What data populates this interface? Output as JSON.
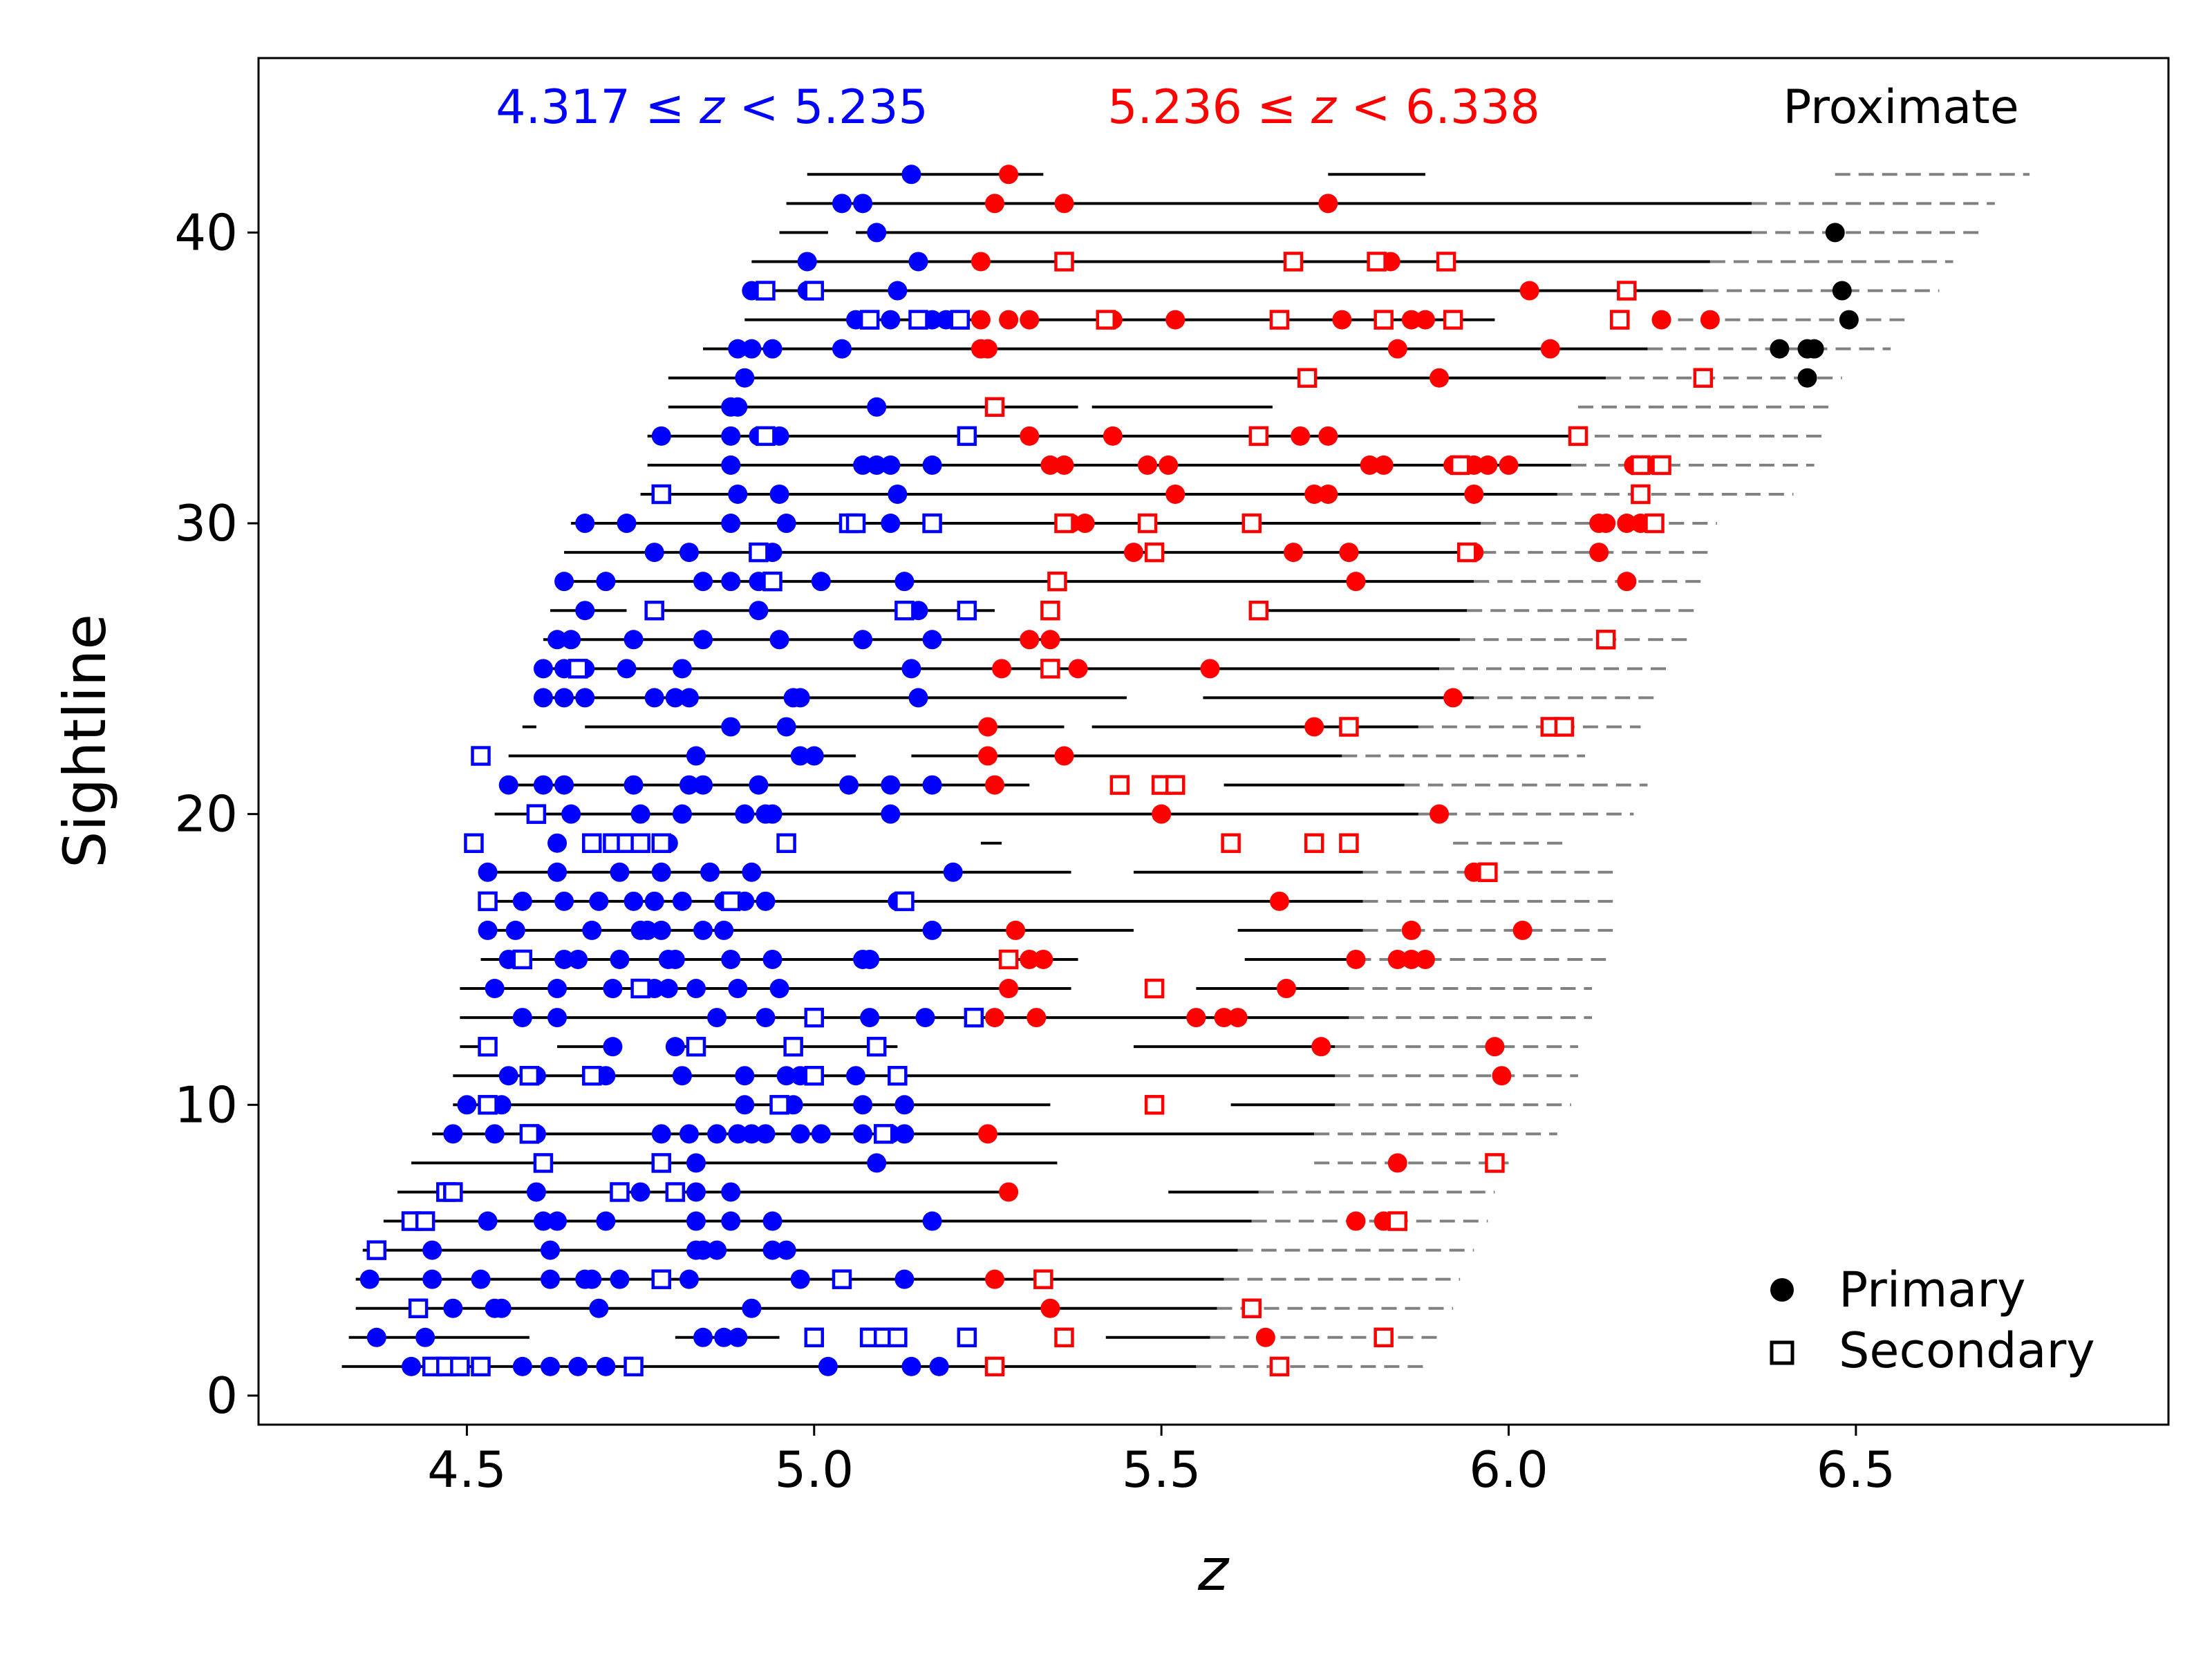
{
  "chart_data": {
    "type": "scatter",
    "xlabel": "z",
    "ylabel": "Sightline",
    "xlim": [
      4.2,
      6.95
    ],
    "ylim": [
      -1,
      46
    ],
    "xticks": [
      4.5,
      5.0,
      5.5,
      6.0,
      6.5
    ],
    "xtick_labels": [
      "4.5",
      "5.0",
      "5.5",
      "6.0",
      "6.5"
    ],
    "yticks": [
      0,
      10,
      20,
      30,
      40
    ],
    "ytick_labels": [
      "0",
      "10",
      "20",
      "30",
      "40"
    ],
    "grid": false,
    "legend_position": "bottom-right",
    "annotations": {
      "low_bin": {
        "lo": "4.317",
        "hi": "5.235",
        "color": "#0000ff"
      },
      "high_bin": {
        "lo": "5.236",
        "hi": "6.338",
        "color": "#ff0000"
      },
      "proximate": "Proximate"
    },
    "legend": [
      {
        "label": "Primary",
        "marker": "circle"
      },
      {
        "label": "Secondary",
        "marker": "square"
      }
    ],
    "colors": {
      "low": "#0000ff",
      "high": "#ff0000",
      "proximate": "#000000",
      "line": "#000000",
      "dashed": "#808080"
    },
    "sightlines": [
      {
        "y": 1,
        "segs": [
          [
            4.32,
            5.55
          ]
        ],
        "dash": [
          5.55,
          5.88
        ],
        "p": [
          4.42,
          4.58,
          4.62,
          4.66,
          4.7,
          5.02,
          5.14,
          5.18
        ],
        "s": [
          4.45,
          4.47,
          4.49,
          4.52,
          4.74,
          5.26,
          5.67
        ]
      },
      {
        "y": 2,
        "segs": [
          [
            4.33,
            4.59
          ],
          [
            4.8,
            4.95
          ],
          [
            5.42,
            5.57
          ]
        ],
        "dash": [
          5.57,
          5.9
        ],
        "p": [
          4.37,
          4.44,
          4.84,
          4.87,
          4.89,
          5.65
        ],
        "s": [
          5.0,
          5.08,
          5.1,
          5.12,
          5.22,
          5.36,
          5.82
        ]
      },
      {
        "y": 3,
        "segs": [
          [
            4.34,
            5.58
          ]
        ],
        "dash": [
          5.58,
          5.92
        ],
        "p": [
          4.48,
          4.54,
          4.55,
          4.69,
          4.91,
          5.34
        ],
        "s": [
          4.43,
          5.63
        ]
      },
      {
        "y": 4,
        "segs": [
          [
            4.34,
            5.59
          ]
        ],
        "dash": [
          5.59,
          5.93
        ],
        "p": [
          4.36,
          4.45,
          4.52,
          4.62,
          4.67,
          4.68,
          4.72,
          4.82,
          4.98,
          5.13,
          5.26
        ],
        "s": [
          4.78,
          5.04,
          5.33
        ]
      },
      {
        "y": 5,
        "segs": [
          [
            4.35,
            5.61
          ]
        ],
        "dash": [
          5.61,
          5.95
        ],
        "p": [
          4.37,
          4.45,
          4.62,
          4.83,
          4.84,
          4.86,
          4.94,
          4.96
        ],
        "s": [
          4.37
        ]
      },
      {
        "y": 6,
        "segs": [
          [
            4.38,
            5.63
          ]
        ],
        "dash": [
          5.63,
          5.97
        ],
        "p": [
          4.44,
          4.53,
          4.61,
          4.63,
          4.7,
          4.83,
          4.88,
          4.94,
          5.17,
          5.78,
          5.82
        ],
        "s": [
          4.42,
          4.44,
          5.84
        ]
      },
      {
        "y": 7,
        "segs": [
          [
            4.4,
            5.28
          ],
          [
            5.51,
            5.64
          ]
        ],
        "dash": [
          5.64,
          5.98
        ],
        "p": [
          4.6,
          4.75,
          4.83,
          4.88,
          5.28
        ],
        "s": [
          4.47,
          4.48,
          4.72,
          4.8
        ]
      },
      {
        "y": 8,
        "segs": [
          [
            4.42,
            5.35
          ]
        ],
        "dash": [
          5.72,
          6.0
        ],
        "p": [
          4.61,
          4.83,
          5.09,
          5.84
        ],
        "s": [
          4.61,
          4.78,
          5.98
        ]
      },
      {
        "y": 9,
        "segs": [
          [
            4.45,
            5.72
          ]
        ],
        "dash": [
          5.72,
          6.07
        ],
        "p": [
          4.48,
          4.54,
          4.6,
          4.78,
          4.82,
          4.86,
          4.89,
          4.91,
          4.93,
          4.98,
          5.01,
          5.07,
          5.11,
          5.13,
          5.25
        ],
        "s": [
          4.59,
          5.1
        ]
      },
      {
        "y": 10,
        "segs": [
          [
            4.48,
            5.34
          ],
          [
            5.6,
            5.75
          ]
        ],
        "dash": [
          5.75,
          6.09
        ],
        "p": [
          4.5,
          4.55,
          4.9,
          4.95,
          4.97,
          5.07,
          5.13
        ],
        "s": [
          4.53,
          4.95,
          5.49
        ]
      },
      {
        "y": 11,
        "segs": [
          [
            4.48,
            5.75
          ]
        ],
        "dash": [
          5.75,
          6.1
        ],
        "p": [
          4.56,
          4.59,
          4.6,
          4.68,
          4.7,
          4.81,
          4.9,
          4.96,
          4.98,
          5.06,
          5.99
        ],
        "s": [
          4.59,
          4.68,
          5.0,
          5.12
        ]
      },
      {
        "y": 12,
        "segs": [
          [
            4.49,
            4.54
          ],
          [
            4.63,
            4.7
          ],
          [
            4.8,
            5.12
          ],
          [
            5.46,
            5.75
          ]
        ],
        "dash": [
          5.75,
          6.1
        ],
        "p": [
          4.71,
          4.8,
          5.73,
          5.98
        ],
        "s": [
          4.53,
          4.83,
          4.97,
          5.09
        ]
      },
      {
        "y": 13,
        "segs": [
          [
            4.49,
            5.77
          ]
        ],
        "dash": [
          5.77,
          6.12
        ],
        "p": [
          4.58,
          4.63,
          4.86,
          4.93,
          5.0,
          5.08,
          5.16,
          5.26,
          5.32,
          5.55,
          5.59,
          5.61
        ],
        "s": [
          5.0,
          5.23
        ]
      },
      {
        "y": 14,
        "segs": [
          [
            4.49,
            5.37
          ],
          [
            5.55,
            5.77
          ]
        ],
        "dash": [
          5.77,
          6.12
        ],
        "p": [
          4.54,
          4.63,
          4.71,
          4.77,
          4.79,
          4.83,
          4.89,
          4.95,
          5.28,
          5.68
        ],
        "s": [
          4.75,
          5.49
        ]
      },
      {
        "y": 15,
        "segs": [
          [
            4.52,
            5.38
          ],
          [
            5.62,
            5.78
          ]
        ],
        "dash": [
          5.78,
          6.14
        ],
        "p": [
          4.56,
          4.58,
          4.64,
          4.66,
          4.72,
          4.79,
          4.8,
          4.88,
          4.94,
          5.07,
          5.08,
          5.31,
          5.33,
          5.78,
          5.84,
          5.86,
          5.88
        ],
        "s": [
          4.58,
          5.28
        ]
      },
      {
        "y": 16,
        "segs": [
          [
            4.52,
            5.46
          ],
          [
            5.61,
            5.79
          ]
        ],
        "dash": [
          5.79,
          6.15
        ],
        "p": [
          4.53,
          4.57,
          4.68,
          4.75,
          4.76,
          4.78,
          4.84,
          4.87,
          5.17,
          5.29,
          5.86,
          6.02
        ],
        "s": []
      },
      {
        "y": 17,
        "segs": [
          [
            4.53,
            5.79
          ]
        ],
        "dash": [
          5.79,
          6.15
        ],
        "p": [
          4.58,
          4.64,
          4.69,
          4.74,
          4.77,
          4.81,
          4.87,
          4.9,
          4.93,
          5.12,
          5.67
        ],
        "s": [
          4.53,
          4.88,
          5.13
        ]
      },
      {
        "y": 18,
        "segs": [
          [
            4.52,
            5.37
          ],
          [
            5.46,
            5.79
          ]
        ],
        "dash": [
          5.79,
          6.15
        ],
        "p": [
          4.53,
          4.63,
          4.72,
          4.78,
          4.85,
          4.91,
          5.2,
          5.95
        ],
        "s": [
          5.97
        ]
      },
      {
        "y": 19,
        "segs": [
          [
            5.24,
            5.27
          ]
        ],
        "dash": [
          5.92,
          6.08
        ],
        "p": [
          4.63,
          4.73,
          4.79
        ],
        "s": [
          4.51,
          4.68,
          4.71,
          4.73,
          4.75,
          4.78,
          4.96,
          5.6,
          5.72,
          5.77
        ]
      },
      {
        "y": 20,
        "segs": [
          [
            4.54,
            5.87
          ]
        ],
        "dash": [
          5.87,
          6.18
        ],
        "p": [
          4.65,
          4.75,
          4.81,
          4.9,
          4.93,
          4.94,
          5.11,
          5.5,
          5.9
        ],
        "s": [
          4.6
        ]
      },
      {
        "y": 21,
        "segs": [
          [
            4.55,
            5.31
          ],
          [
            5.59,
            5.85
          ]
        ],
        "dash": [
          5.85,
          6.2
        ],
        "p": [
          4.56,
          4.61,
          4.64,
          4.74,
          4.82,
          4.84,
          4.92,
          5.05,
          5.11,
          5.17,
          5.26
        ],
        "s": [
          5.44,
          5.5,
          5.52
        ]
      },
      {
        "y": 22,
        "segs": [
          [
            4.56,
            5.06
          ],
          [
            5.14,
            5.76
          ]
        ],
        "dash": [
          5.76,
          6.11
        ],
        "p": [
          4.83,
          4.98,
          5.0,
          5.25,
          5.36
        ],
        "s": [
          4.52
        ]
      },
      {
        "y": 23,
        "segs": [
          [
            4.58,
            4.6
          ],
          [
            4.67,
            5.36
          ],
          [
            5.4,
            5.87
          ]
        ],
        "dash": [
          5.87,
          6.19
        ],
        "p": [
          4.88,
          4.96,
          5.25,
          5.72
        ],
        "s": [
          5.77,
          6.06,
          6.08
        ]
      },
      {
        "y": 24,
        "segs": [
          [
            4.6,
            5.45
          ],
          [
            5.56,
            5.95
          ]
        ],
        "dash": [
          5.95,
          6.22
        ],
        "p": [
          4.61,
          4.64,
          4.67,
          4.77,
          4.8,
          4.82,
          4.97,
          4.98,
          5.15,
          5.92
        ],
        "s": []
      },
      {
        "y": 25,
        "segs": [
          [
            4.6,
            5.9
          ]
        ],
        "dash": [
          5.9,
          6.23
        ],
        "p": [
          4.61,
          4.64,
          4.67,
          4.73,
          4.81,
          5.14,
          5.27,
          5.38,
          5.57
        ],
        "s": [
          4.66,
          5.34
        ]
      },
      {
        "y": 26,
        "segs": [
          [
            4.61,
            5.93
          ]
        ],
        "dash": [
          5.93,
          6.26
        ],
        "p": [
          4.63,
          4.65,
          4.74,
          4.84,
          4.95,
          5.07,
          5.17,
          5.31,
          5.34
        ],
        "s": [
          6.14
        ]
      },
      {
        "y": 27,
        "segs": [
          [
            4.62,
            4.73
          ],
          [
            4.78,
            5.26
          ],
          [
            5.63,
            5.94
          ]
        ],
        "dash": [
          5.94,
          6.27
        ],
        "p": [
          4.67,
          4.92,
          5.15
        ],
        "s": [
          4.77,
          5.13,
          5.22,
          5.34,
          5.64
        ]
      },
      {
        "y": 28,
        "segs": [
          [
            4.63,
            5.95
          ]
        ],
        "dash": [
          5.95,
          6.28
        ],
        "p": [
          4.64,
          4.7,
          4.84,
          4.88,
          4.92,
          5.01,
          5.13,
          5.78,
          6.17
        ],
        "s": [
          4.94,
          5.35
        ]
      },
      {
        "y": 29,
        "segs": [
          [
            4.64,
            5.96
          ]
        ],
        "dash": [
          5.96,
          6.29
        ],
        "p": [
          4.77,
          4.82,
          4.92,
          4.94,
          5.46,
          5.69,
          5.77,
          5.95,
          6.13
        ],
        "s": [
          4.92,
          5.49,
          5.94
        ]
      },
      {
        "y": 30,
        "segs": [
          [
            4.65,
            5.96
          ]
        ],
        "dash": [
          5.96,
          6.3
        ],
        "p": [
          4.67,
          4.73,
          4.88,
          4.96,
          5.11,
          5.37,
          5.39,
          6.13,
          6.14,
          6.17,
          6.19
        ],
        "s": [
          5.05,
          5.06,
          5.17,
          5.36,
          5.48,
          5.63,
          6.21
        ]
      },
      {
        "y": 31,
        "segs": [
          [
            4.75,
            6.07
          ]
        ],
        "dash": [
          6.07,
          6.41
        ],
        "p": [
          4.89,
          4.95,
          5.12,
          5.52,
          5.72,
          5.74,
          5.95
        ],
        "s": [
          4.78,
          6.19
        ]
      },
      {
        "y": 32,
        "segs": [
          [
            4.76,
            6.09
          ]
        ],
        "dash": [
          6.09,
          6.44
        ],
        "p": [
          4.88,
          5.07,
          5.09,
          5.11,
          5.17,
          5.34,
          5.36,
          5.48,
          5.51,
          5.8,
          5.82,
          5.92,
          5.95,
          5.97,
          6.0,
          6.18,
          6.21
        ],
        "s": [
          5.93,
          6.19,
          6.22
        ]
      },
      {
        "y": 33,
        "segs": [
          [
            4.76,
            6.09
          ]
        ],
        "dash": [
          6.09,
          6.46
        ],
        "p": [
          4.78,
          4.88,
          4.92,
          4.95,
          5.31,
          5.43,
          5.7,
          5.74
        ],
        "s": [
          4.93,
          5.22,
          5.64,
          6.1
        ]
      },
      {
        "y": 34,
        "segs": [
          [
            4.79,
            5.38
          ],
          [
            5.4,
            5.66
          ]
        ],
        "dash": [
          6.1,
          6.47
        ],
        "p": [
          4.88,
          4.89,
          5.09
        ],
        "s": [
          5.26
        ]
      },
      {
        "y": 35,
        "segs": [
          [
            4.79,
            6.14
          ]
        ],
        "dash": [
          6.14,
          6.48
        ],
        "p": [
          4.9,
          5.9,
          6.43
        ],
        "s": [
          5.71,
          6.28
        ]
      },
      {
        "y": 36,
        "segs": [
          [
            4.84,
            6.2
          ]
        ],
        "dash": [
          6.2,
          6.55
        ],
        "p": [
          4.89,
          4.91,
          4.94,
          5.04,
          5.24,
          5.25,
          5.84,
          6.06,
          6.39,
          6.43,
          6.44
        ],
        "s": []
      },
      {
        "y": 37,
        "segs": [
          [
            4.9,
            5.23
          ],
          [
            5.32,
            5.98
          ]
        ],
        "dash": [
          6.21,
          6.57
        ],
        "p": [
          5.06,
          5.11,
          5.17,
          5.19,
          5.24,
          5.28,
          5.31,
          5.43,
          5.52,
          5.76,
          5.86,
          5.88,
          6.22,
          6.29,
          6.49
        ],
        "s": [
          5.08,
          5.15,
          5.21,
          5.42,
          5.67,
          5.82,
          5.92,
          6.16
        ]
      },
      {
        "y": 38,
        "segs": [
          [
            4.9,
            6.28
          ]
        ],
        "dash": [
          6.28,
          6.62
        ],
        "p": [
          4.91,
          4.99,
          5.12,
          6.03,
          6.48
        ],
        "s": [
          4.93,
          5.0,
          6.17
        ]
      },
      {
        "y": 39,
        "segs": [
          [
            4.91,
            6.29
          ]
        ],
        "dash": [
          6.29,
          6.64
        ],
        "p": [
          4.99,
          5.15,
          5.24,
          5.83
        ],
        "s": [
          5.36,
          5.69,
          5.81,
          5.91
        ]
      },
      {
        "y": 40,
        "segs": [
          [
            4.95,
            5.02
          ],
          [
            5.06,
            6.35
          ]
        ],
        "dash": [
          6.35,
          6.68
        ],
        "p": [
          5.09,
          6.47
        ],
        "s": []
      },
      {
        "y": 41,
        "segs": [
          [
            4.96,
            6.35
          ]
        ],
        "dash": [
          6.35,
          6.7
        ],
        "p": [
          5.04,
          5.07,
          5.26,
          5.36,
          5.74
        ],
        "s": []
      },
      {
        "y": 42,
        "segs": [
          [
            4.99,
            5.33
          ],
          [
            5.74,
            5.88
          ]
        ],
        "dash": [
          6.47,
          6.75
        ],
        "p": [
          5.14,
          5.28
        ],
        "s": []
      }
    ]
  }
}
